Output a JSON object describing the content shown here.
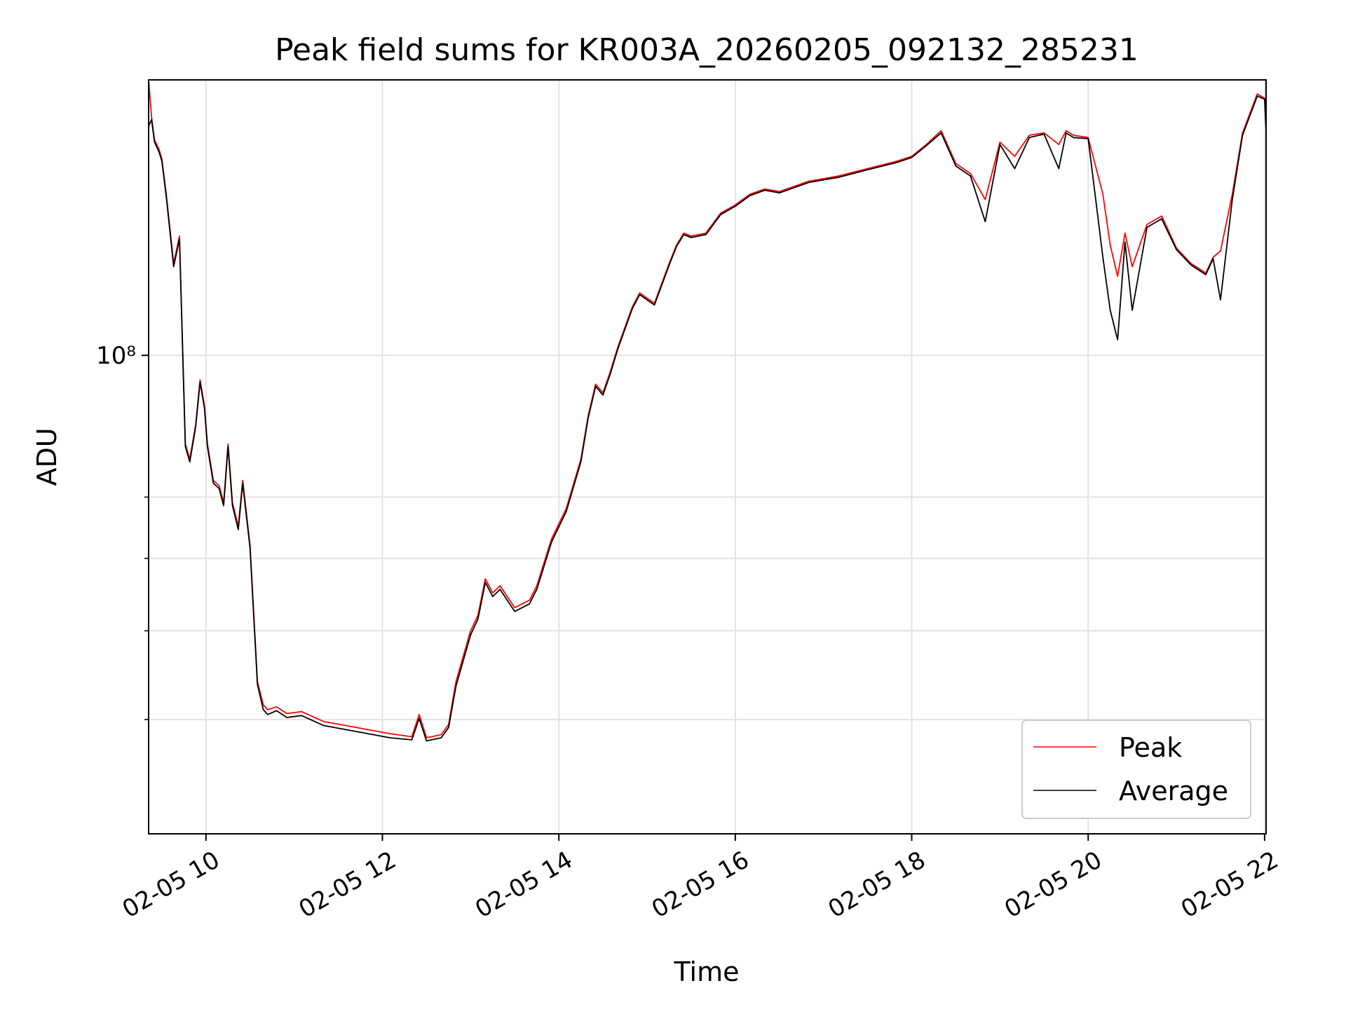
{
  "chart_data": {
    "type": "line",
    "title": "Peak field sums for KR003A_20260205_092132_285231",
    "xlabel": "Time",
    "ylabel": "ADU",
    "y_scale": "log",
    "grid": true,
    "legend_position": "lower-right",
    "ylim": [
      30000000,
      200000000
    ],
    "xlim": [
      "2026-02-05 09:21",
      "2026-02-05 22:01"
    ],
    "x_ticks": [
      "02-05 10",
      "02-05 12",
      "02-05 14",
      "02-05 16",
      "02-05 18",
      "02-05 20",
      "02-05 22"
    ],
    "x_tick_times": [
      "2026-02-05 10:00",
      "2026-02-05 12:00",
      "2026-02-05 14:00",
      "2026-02-05 16:00",
      "2026-02-05 18:00",
      "2026-02-05 20:00",
      "2026-02-05 22:00"
    ],
    "y_ticks": [
      "10⁸"
    ],
    "y_major_tick_values": [
      100000000
    ],
    "y_minor_tick_values": [
      40000000,
      50000000,
      60000000,
      70000000
    ],
    "series": [
      {
        "name": "Peak",
        "color": "#ff0000",
        "x": [
          "09:21",
          "09:23",
          "09:25",
          "09:28",
          "09:30",
          "09:33",
          "09:38",
          "09:42",
          "09:46",
          "09:49",
          "09:53",
          "09:56",
          "09:59",
          "10:01",
          "10:05",
          "10:09",
          "10:12",
          "10:15",
          "10:18",
          "10:22",
          "10:25",
          "10:30",
          "10:35",
          "10:39",
          "10:42",
          "10:48",
          "10:55",
          "11:05",
          "11:20",
          "11:35",
          "11:50",
          "12:05",
          "12:20",
          "12:25",
          "12:30",
          "12:40",
          "12:45",
          "12:50",
          "13:00",
          "13:05",
          "13:10",
          "13:15",
          "13:20",
          "13:30",
          "13:40",
          "13:45",
          "13:55",
          "14:05",
          "14:15",
          "14:20",
          "14:25",
          "14:30",
          "14:35",
          "14:40",
          "14:50",
          "14:55",
          "15:05",
          "15:15",
          "15:20",
          "15:25",
          "15:30",
          "15:40",
          "15:50",
          "16:00",
          "16:10",
          "16:20",
          "16:30",
          "16:50",
          "17:10",
          "17:30",
          "17:50",
          "18:00",
          "18:10",
          "18:20",
          "18:30",
          "18:40",
          "18:50",
          "19:00",
          "19:10",
          "19:20",
          "19:30",
          "19:40",
          "19:45",
          "19:50",
          "20:00",
          "20:10",
          "20:15",
          "20:20",
          "20:25",
          "20:30",
          "20:40",
          "20:50",
          "21:00",
          "21:10",
          "21:20",
          "21:25",
          "21:30",
          "21:38",
          "21:45",
          "21:55",
          "22:00",
          "22:01"
        ],
        "y": [
          200000000,
          182000000,
          172000000,
          168000000,
          164000000,
          150000000,
          126000000,
          135000000,
          80000000,
          77000000,
          84000000,
          94000000,
          88000000,
          80000000,
          73000000,
          72000000,
          69000000,
          80000000,
          69000000,
          65000000,
          73000000,
          62000000,
          44000000,
          41500000,
          41000000,
          41300000,
          40600000,
          40800000,
          39800000,
          39400000,
          39000000,
          38600000,
          38300000,
          40500000,
          38200000,
          38500000,
          39500000,
          44000000,
          50000000,
          52000000,
          57000000,
          55000000,
          56000000,
          53000000,
          54000000,
          56000000,
          63000000,
          68000000,
          77000000,
          86000000,
          93000000,
          91000000,
          96000000,
          102000000,
          113000000,
          117000000,
          114000000,
          126000000,
          132000000,
          136000000,
          135000000,
          136000000,
          143000000,
          146000000,
          150000000,
          152000000,
          151000000,
          155000000,
          157000000,
          160000000,
          163000000,
          165000000,
          170000000,
          176000000,
          162000000,
          158000000,
          148000000,
          171000000,
          165000000,
          174000000,
          175000000,
          170000000,
          176000000,
          174000000,
          173000000,
          150000000,
          132000000,
          122000000,
          136000000,
          125000000,
          139000000,
          142000000,
          131000000,
          126000000,
          123000000,
          128000000,
          130000000,
          150000000,
          175000000,
          193000000,
          191000000,
          185000000
        ]
      },
      {
        "name": "Average",
        "color": "#000000",
        "x": [
          "09:21",
          "09:23",
          "09:25",
          "09:28",
          "09:30",
          "09:33",
          "09:38",
          "09:42",
          "09:46",
          "09:49",
          "09:53",
          "09:56",
          "09:59",
          "10:01",
          "10:05",
          "10:09",
          "10:12",
          "10:15",
          "10:18",
          "10:22",
          "10:25",
          "10:30",
          "10:35",
          "10:39",
          "10:42",
          "10:48",
          "10:55",
          "11:05",
          "11:20",
          "11:35",
          "11:50",
          "12:05",
          "12:20",
          "12:25",
          "12:30",
          "12:40",
          "12:45",
          "12:50",
          "13:00",
          "13:05",
          "13:10",
          "13:15",
          "13:20",
          "13:30",
          "13:40",
          "13:45",
          "13:55",
          "14:05",
          "14:15",
          "14:20",
          "14:25",
          "14:30",
          "14:35",
          "14:40",
          "14:50",
          "14:55",
          "15:05",
          "15:15",
          "15:20",
          "15:25",
          "15:30",
          "15:40",
          "15:50",
          "16:00",
          "16:10",
          "16:20",
          "16:30",
          "16:50",
          "17:10",
          "17:30",
          "17:50",
          "18:00",
          "18:10",
          "18:20",
          "18:30",
          "18:40",
          "18:50",
          "19:00",
          "19:10",
          "19:20",
          "19:30",
          "19:40",
          "19:45",
          "19:50",
          "20:00",
          "20:10",
          "20:15",
          "20:20",
          "20:25",
          "20:30",
          "20:40",
          "20:50",
          "21:00",
          "21:10",
          "21:20",
          "21:25",
          "21:30",
          "21:38",
          "21:45",
          "21:55",
          "22:00",
          "22:01"
        ],
        "y": [
          178000000,
          181000000,
          171000000,
          167000000,
          163000000,
          149000000,
          125000000,
          134000000,
          79500000,
          76500000,
          83500000,
          93500000,
          87500000,
          79500000,
          72500000,
          71500000,
          68500000,
          79500000,
          68500000,
          64500000,
          72500000,
          61500000,
          43700000,
          41000000,
          40500000,
          40900000,
          40200000,
          40400000,
          39400000,
          39000000,
          38600000,
          38200000,
          38000000,
          40100000,
          37900000,
          38200000,
          39200000,
          43500000,
          49500000,
          51500000,
          56500000,
          54500000,
          55500000,
          52500000,
          53500000,
          55500000,
          62500000,
          67500000,
          76500000,
          85500000,
          92500000,
          90500000,
          95500000,
          101500000,
          112500000,
          116500000,
          113500000,
          125500000,
          131500000,
          135500000,
          134500000,
          135500000,
          142500000,
          145500000,
          149500000,
          151500000,
          150500000,
          154500000,
          156500000,
          159500000,
          162500000,
          164500000,
          169500000,
          175000000,
          161000000,
          157000000,
          140000000,
          170000000,
          160000000,
          173000000,
          174500000,
          160000000,
          175000000,
          173000000,
          172500000,
          128000000,
          112000000,
          104000000,
          133000000,
          112000000,
          138000000,
          141000000,
          130500000,
          125500000,
          122500000,
          127500000,
          115000000,
          148000000,
          174000000,
          192000000,
          190500000,
          176000000
        ]
      }
    ]
  }
}
